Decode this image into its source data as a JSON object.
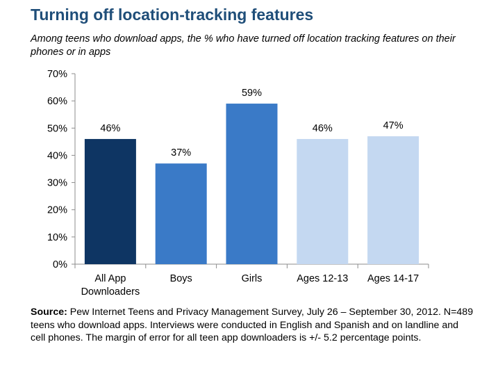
{
  "title": "Turning off location-tracking features",
  "subtitle": "Among teens who download apps, the % who have turned off location tracking features on their phones or in apps",
  "source": {
    "label": "Source:",
    "text": " Pew Internet Teens and Privacy Management Survey, July 26 – September 30, 2012. N=489 teens who download apps.  Interviews were conducted in English and Spanish and on landline and cell phones.  The margin of error for all teen app downloaders  is +/- 5.2 percentage points."
  },
  "chart_data": {
    "type": "bar",
    "categories": [
      [
        "All App",
        "Downloaders"
      ],
      [
        "Boys"
      ],
      [
        "Girls"
      ],
      [
        "Ages 12-13"
      ],
      [
        "Ages 14-17"
      ]
    ],
    "values": [
      46,
      37,
      59,
      46,
      47
    ],
    "data_labels": [
      "46%",
      "37%",
      "59%",
      "46%",
      "47%"
    ],
    "colors": [
      "#0e3563",
      "#3a7ac7",
      "#3a7ac7",
      "#c4d8f1",
      "#c4d8f1"
    ],
    "ylim": [
      0,
      70
    ],
    "yticks": [
      0,
      10,
      20,
      30,
      40,
      50,
      60,
      70
    ],
    "ytick_labels": [
      "0%",
      "10%",
      "20%",
      "30%",
      "40%",
      "50%",
      "60%",
      "70%"
    ],
    "grid": false,
    "legend": "none",
    "xlabel": "",
    "ylabel": ""
  }
}
